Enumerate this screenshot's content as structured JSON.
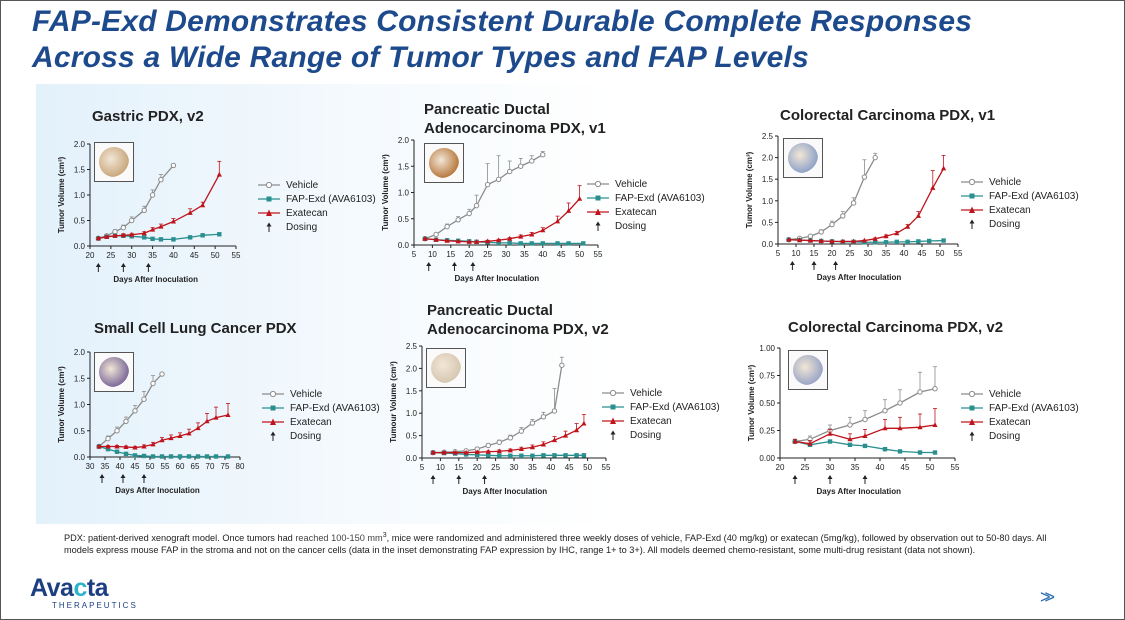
{
  "slide": {
    "title_line1": "FAP-Exd Demonstrates Consistent Durable Complete Responses",
    "title_line2": "Across a Wide Range of Tumor Types and FAP Levels",
    "footnote_part1": "PDX: patient-derived xenograft model.  Once tumors had ",
    "footnote_reached": "reached 100-150 mm",
    "footnote_sup": "3",
    "footnote_part2": ", mice were randomized and administered  three weekly doses of vehicle, FAP-Exd (40 mg/kg) or exatecan (5mg/kg), followed by observation out to 50-80 days.  All models express mouse FAP in the stroma and not on the cancer cells (data in the inset demonstrating FAP expression by IHC, range 1+ to 3+).  All models deemed chemo-resistant, some multi-drug resistant (data not shown).",
    "logo_text_a": "Ava",
    "logo_text_x": "c",
    "logo_text_b": "ta",
    "logo_sub": "THERAPEUTICS",
    "nav_icon": "double-chevron-right-icon"
  },
  "legend_labels": {
    "vehicle": "Vehicle",
    "fapexd": "FAP-Exd (AVA6103)",
    "exatecan": "Exatecan",
    "dosing": "Dosing",
    "dosing_symbol": "↑"
  },
  "colors": {
    "vehicle": "#8c8c8c",
    "fapexd": "#2a8f8f",
    "exatecan": "#c0141c",
    "title": "#1d4a8c"
  },
  "chart_data": [
    {
      "id": "gastric-v2",
      "type": "line",
      "title": [
        "Gastric PDX, v2"
      ],
      "xlabel": "Days After Inoculation",
      "ylabel": "Tumor Volume (cm³)",
      "xlim": [
        20,
        55
      ],
      "ylim": [
        0,
        2.0
      ],
      "xticks": [
        20,
        25,
        30,
        35,
        40,
        45,
        50,
        55
      ],
      "yticks": [
        0.0,
        0.5,
        1.0,
        1.5,
        2.0
      ],
      "ytick_labels": [
        "0.0",
        "0.5",
        "1.0",
        "1.5",
        "2.0"
      ],
      "dosing": [
        22,
        28,
        34
      ],
      "series": [
        {
          "name": "Vehicle",
          "key": "vehicle",
          "x": [
            22,
            24,
            26,
            28,
            30,
            33,
            35,
            37,
            40
          ],
          "y": [
            0.15,
            0.2,
            0.28,
            0.36,
            0.5,
            0.7,
            1.0,
            1.3,
            1.58
          ],
          "err": [
            0.02,
            0.03,
            0.04,
            0.05,
            0.07,
            0.08,
            0.1,
            0.1,
            0.0
          ]
        },
        {
          "name": "FAP-Exd (AVA6103)",
          "key": "fapexd",
          "x": [
            22,
            24,
            26,
            28,
            30,
            33,
            35,
            37,
            40,
            44,
            47,
            51
          ],
          "y": [
            0.15,
            0.18,
            0.2,
            0.2,
            0.19,
            0.17,
            0.14,
            0.13,
            0.13,
            0.17,
            0.21,
            0.23
          ],
          "err": [
            0,
            0,
            0,
            0,
            0,
            0,
            0,
            0,
            0,
            0,
            0,
            0
          ]
        },
        {
          "name": "Exatecan",
          "key": "exatecan",
          "x": [
            22,
            24,
            26,
            28,
            30,
            33,
            35,
            37,
            40,
            44,
            47,
            51
          ],
          "y": [
            0.15,
            0.18,
            0.2,
            0.21,
            0.22,
            0.25,
            0.32,
            0.38,
            0.48,
            0.65,
            0.8,
            1.4
          ],
          "err": [
            0.02,
            0.02,
            0.02,
            0.03,
            0.03,
            0.03,
            0.04,
            0.05,
            0.06,
            0.08,
            0.06,
            0.26
          ]
        }
      ]
    },
    {
      "id": "pdac-v1",
      "type": "line",
      "title": [
        "Pancreatic Ductal",
        "Adenocarcinoma PDX, v1"
      ],
      "xlabel": "Days After Inoculation",
      "ylabel": "Tumor Volume (cm³)",
      "xlim": [
        5,
        55
      ],
      "ylim": [
        0,
        2.0
      ],
      "xticks": [
        5,
        10,
        15,
        20,
        25,
        30,
        35,
        40,
        45,
        50,
        55
      ],
      "yticks": [
        0.0,
        0.5,
        1.0,
        1.5,
        2.0
      ],
      "ytick_labels": [
        "0.0",
        "0.5",
        "1.0",
        "1.5",
        "2.0"
      ],
      "dosing": [
        9,
        16,
        21
      ],
      "series": [
        {
          "name": "Vehicle",
          "key": "vehicle",
          "x": [
            8,
            11,
            14,
            17,
            20,
            22,
            25,
            28,
            31,
            34,
            37,
            40
          ],
          "y": [
            0.12,
            0.2,
            0.35,
            0.48,
            0.6,
            0.75,
            1.15,
            1.25,
            1.4,
            1.5,
            1.6,
            1.72
          ],
          "err": [
            0.02,
            0.03,
            0.05,
            0.06,
            0.08,
            0.2,
            0.4,
            0.45,
            0.2,
            0.15,
            0.1,
            0.06
          ]
        },
        {
          "name": "FAP-Exd (AVA6103)",
          "key": "fapexd",
          "x": [
            8,
            11,
            14,
            17,
            20,
            22,
            25,
            28,
            31,
            34,
            37,
            40,
            44,
            47,
            51
          ],
          "y": [
            0.12,
            0.1,
            0.09,
            0.08,
            0.07,
            0.06,
            0.05,
            0.04,
            0.04,
            0.03,
            0.03,
            0.03,
            0.03,
            0.03,
            0.03
          ],
          "err": [
            0,
            0,
            0,
            0,
            0,
            0,
            0,
            0,
            0,
            0,
            0,
            0,
            0,
            0,
            0
          ]
        },
        {
          "name": "Exatecan",
          "key": "exatecan",
          "x": [
            8,
            11,
            14,
            17,
            20,
            22,
            25,
            28,
            31,
            34,
            37,
            40,
            44,
            47,
            50
          ],
          "y": [
            0.12,
            0.1,
            0.08,
            0.07,
            0.06,
            0.06,
            0.07,
            0.09,
            0.12,
            0.16,
            0.2,
            0.28,
            0.45,
            0.65,
            0.88
          ],
          "err": [
            0.01,
            0.01,
            0.01,
            0.01,
            0.01,
            0.01,
            0.02,
            0.02,
            0.02,
            0.03,
            0.04,
            0.05,
            0.1,
            0.15,
            0.25
          ]
        }
      ]
    },
    {
      "id": "crc-v1",
      "type": "line",
      "title": [
        "Colorectal Carcinoma PDX, v1"
      ],
      "xlabel": "Days After Inoculation",
      "ylabel": "Tumor Volume (cm³)",
      "xlim": [
        5,
        55
      ],
      "ylim": [
        0,
        2.5
      ],
      "xticks": [
        5,
        10,
        15,
        20,
        25,
        30,
        35,
        40,
        45,
        50,
        55
      ],
      "yticks": [
        0.0,
        0.5,
        1.0,
        1.5,
        2.0,
        2.5
      ],
      "ytick_labels": [
        "0.0",
        "0.5",
        "1.0",
        "1.5",
        "2.0",
        "2.5"
      ],
      "dosing": [
        9,
        15,
        21
      ],
      "series": [
        {
          "name": "Vehicle",
          "key": "vehicle",
          "x": [
            8,
            11,
            14,
            17,
            20,
            23,
            26,
            29,
            32
          ],
          "y": [
            0.1,
            0.13,
            0.18,
            0.28,
            0.45,
            0.65,
            0.95,
            1.55,
            2.0
          ],
          "err": [
            0.02,
            0.02,
            0.03,
            0.05,
            0.08,
            0.1,
            0.12,
            0.4,
            0.1
          ]
        },
        {
          "name": "FAP-Exd (AVA6103)",
          "key": "fapexd",
          "x": [
            8,
            11,
            14,
            17,
            20,
            23,
            26,
            29,
            32,
            35,
            38,
            41,
            44,
            47,
            51
          ],
          "y": [
            0.1,
            0.09,
            0.08,
            0.07,
            0.06,
            0.05,
            0.05,
            0.04,
            0.04,
            0.04,
            0.05,
            0.05,
            0.06,
            0.07,
            0.08
          ],
          "err": [
            0,
            0,
            0,
            0,
            0,
            0,
            0,
            0,
            0,
            0,
            0,
            0,
            0,
            0,
            0
          ]
        },
        {
          "name": "Exatecan",
          "key": "exatecan",
          "x": [
            8,
            11,
            14,
            17,
            20,
            23,
            26,
            29,
            32,
            35,
            38,
            41,
            44,
            48,
            51
          ],
          "y": [
            0.1,
            0.09,
            0.08,
            0.07,
            0.06,
            0.06,
            0.06,
            0.08,
            0.12,
            0.18,
            0.25,
            0.4,
            0.65,
            1.3,
            1.75
          ],
          "err": [
            0.01,
            0.01,
            0.01,
            0.01,
            0.01,
            0.01,
            0.01,
            0.01,
            0.02,
            0.03,
            0.04,
            0.05,
            0.1,
            0.4,
            0.3
          ]
        }
      ]
    },
    {
      "id": "sclc",
      "type": "line",
      "title": [
        "Small Cell Lung Cancer PDX"
      ],
      "xlabel": "Days After Inoculation",
      "ylabel": "Tumor Volume (cm³)",
      "xlim": [
        30,
        80
      ],
      "ylim": [
        0,
        2.0
      ],
      "xticks": [
        30,
        35,
        40,
        45,
        50,
        55,
        60,
        65,
        70,
        75,
        80
      ],
      "yticks": [
        0.0,
        0.5,
        1.0,
        1.5,
        2.0
      ],
      "ytick_labels": [
        "0.0",
        "0.5",
        "1.0",
        "1.5",
        "2.0"
      ],
      "dosing": [
        34,
        41,
        48
      ],
      "series": [
        {
          "name": "Vehicle",
          "key": "vehicle",
          "x": [
            33,
            36,
            39,
            42,
            45,
            48,
            51,
            54
          ],
          "y": [
            0.2,
            0.35,
            0.5,
            0.68,
            0.88,
            1.1,
            1.4,
            1.58
          ],
          "err": [
            0.02,
            0.05,
            0.07,
            0.08,
            0.1,
            0.15,
            0.15,
            0.0
          ]
        },
        {
          "name": "FAP-Exd (AVA6103)",
          "key": "fapexd",
          "x": [
            33,
            36,
            39,
            42,
            45,
            48,
            51,
            54,
            57,
            60,
            63,
            66,
            69,
            72,
            76
          ],
          "y": [
            0.2,
            0.15,
            0.1,
            0.06,
            0.03,
            0.02,
            0.01,
            0.01,
            0.01,
            0.01,
            0.01,
            0.01,
            0.01,
            0.01,
            0.01
          ],
          "err": [
            0,
            0,
            0,
            0,
            0,
            0,
            0,
            0,
            0,
            0,
            0,
            0,
            0,
            0,
            0
          ]
        },
        {
          "name": "Exatecan",
          "key": "exatecan",
          "x": [
            33,
            36,
            39,
            42,
            45,
            48,
            51,
            54,
            57,
            60,
            63,
            66,
            69,
            72,
            76
          ],
          "y": [
            0.2,
            0.2,
            0.2,
            0.19,
            0.18,
            0.2,
            0.24,
            0.32,
            0.36,
            0.4,
            0.45,
            0.55,
            0.68,
            0.75,
            0.8
          ],
          "err": [
            0.02,
            0.02,
            0.02,
            0.02,
            0.02,
            0.03,
            0.04,
            0.05,
            0.06,
            0.06,
            0.08,
            0.1,
            0.15,
            0.2,
            0.22
          ]
        }
      ]
    },
    {
      "id": "pdac-v2",
      "type": "line",
      "title": [
        "Pancreatic Ductal",
        "Adenocarcinoma PDX, v2"
      ],
      "xlabel": "Days After Inoculation",
      "ylabel": "Tumour Volume (cm³)",
      "xlim": [
        5,
        55
      ],
      "ylim": [
        0,
        2.5
      ],
      "xticks": [
        5,
        10,
        15,
        20,
        25,
        30,
        35,
        40,
        45,
        50,
        55
      ],
      "yticks": [
        0.0,
        0.5,
        1.0,
        1.5,
        2.0,
        2.5
      ],
      "ytick_labels": [
        "0.0",
        "0.5",
        "1.0",
        "1.5",
        "2.0",
        "2.5"
      ],
      "dosing": [
        8,
        15,
        22
      ],
      "series": [
        {
          "name": "Vehicle",
          "key": "vehicle",
          "x": [
            8,
            11,
            14,
            17,
            20,
            23,
            26,
            29,
            32,
            35,
            38,
            41,
            43
          ],
          "y": [
            0.12,
            0.13,
            0.14,
            0.16,
            0.2,
            0.28,
            0.35,
            0.45,
            0.6,
            0.78,
            0.92,
            1.05,
            2.07
          ],
          "err": [
            0.02,
            0.02,
            0.02,
            0.02,
            0.03,
            0.04,
            0.05,
            0.06,
            0.08,
            0.08,
            0.1,
            0.5,
            0.18
          ]
        },
        {
          "name": "FAP-Exd (AVA6103)",
          "key": "fapexd",
          "x": [
            8,
            11,
            14,
            17,
            20,
            23,
            26,
            29,
            32,
            35,
            38,
            41,
            44,
            47,
            49
          ],
          "y": [
            0.12,
            0.11,
            0.1,
            0.08,
            0.07,
            0.06,
            0.05,
            0.05,
            0.05,
            0.05,
            0.06,
            0.06,
            0.06,
            0.06,
            0.06
          ],
          "err": [
            0,
            0,
            0,
            0,
            0,
            0,
            0,
            0,
            0,
            0,
            0,
            0,
            0,
            0,
            0
          ]
        },
        {
          "name": "Exatecan",
          "key": "exatecan",
          "x": [
            8,
            11,
            14,
            17,
            20,
            23,
            26,
            29,
            32,
            35,
            38,
            41,
            44,
            47,
            49
          ],
          "y": [
            0.12,
            0.12,
            0.12,
            0.12,
            0.13,
            0.14,
            0.15,
            0.17,
            0.2,
            0.24,
            0.3,
            0.4,
            0.5,
            0.62,
            0.77
          ],
          "err": [
            0.02,
            0.02,
            0.02,
            0.02,
            0.02,
            0.02,
            0.03,
            0.03,
            0.04,
            0.05,
            0.06,
            0.08,
            0.1,
            0.15,
            0.2
          ]
        }
      ]
    },
    {
      "id": "crc-v2",
      "type": "line",
      "title": [
        "Colorectal Carcinoma PDX, v2"
      ],
      "xlabel": "Days After Inoculation",
      "ylabel": "Tumor Volume (cm³)",
      "xlim": [
        20,
        55
      ],
      "ylim": [
        0,
        1.0
      ],
      "xticks": [
        20,
        25,
        30,
        35,
        40,
        45,
        50,
        55
      ],
      "yticks": [
        0.0,
        0.25,
        0.5,
        0.75,
        1.0
      ],
      "ytick_labels": [
        "0.00",
        "0.25",
        "0.50",
        "0.75",
        "1.00"
      ],
      "dosing": [
        23,
        30,
        37
      ],
      "series": [
        {
          "name": "Vehicle",
          "key": "vehicle",
          "x": [
            23,
            26,
            30,
            34,
            37,
            41,
            44,
            48,
            51
          ],
          "y": [
            0.15,
            0.17,
            0.25,
            0.3,
            0.35,
            0.43,
            0.5,
            0.6,
            0.63
          ],
          "err": [
            0.02,
            0.03,
            0.05,
            0.07,
            0.08,
            0.1,
            0.12,
            0.18,
            0.2
          ]
        },
        {
          "name": "FAP-Exd (AVA6103)",
          "key": "fapexd",
          "x": [
            23,
            26,
            30,
            34,
            37,
            41,
            44,
            48,
            51
          ],
          "y": [
            0.15,
            0.12,
            0.15,
            0.12,
            0.11,
            0.08,
            0.06,
            0.05,
            0.05
          ],
          "err": [
            0,
            0,
            0,
            0,
            0,
            0,
            0,
            0,
            0
          ]
        },
        {
          "name": "Exatecan",
          "key": "exatecan",
          "x": [
            23,
            26,
            30,
            34,
            37,
            41,
            44,
            48,
            51
          ],
          "y": [
            0.15,
            0.13,
            0.22,
            0.17,
            0.2,
            0.27,
            0.27,
            0.28,
            0.3
          ],
          "err": [
            0.02,
            0.03,
            0.04,
            0.05,
            0.06,
            0.08,
            0.1,
            0.12,
            0.15
          ]
        }
      ]
    }
  ]
}
